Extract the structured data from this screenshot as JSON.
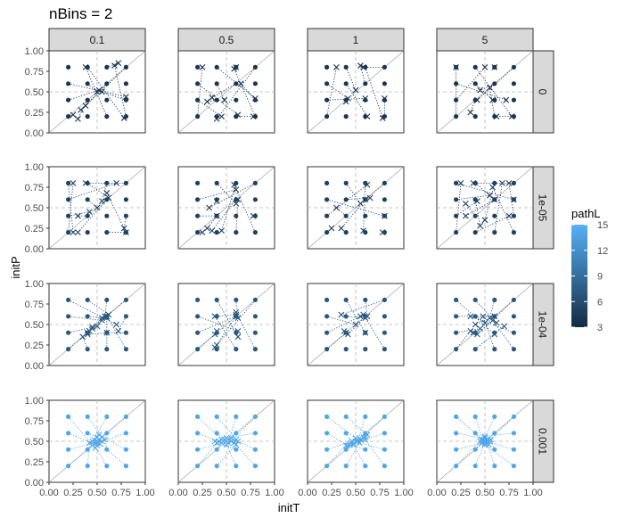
{
  "chart_data": {
    "type": "scatter",
    "title": "nBins =  2",
    "xlabel": "initT",
    "ylabel": "initP",
    "xlim": [
      0,
      1
    ],
    "ylim": [
      0,
      1
    ],
    "x_ticks": [
      "0.00",
      "0.25",
      "0.50",
      "0.75",
      "1.00"
    ],
    "y_ticks": [
      "0.00",
      "0.25",
      "0.50",
      "0.75",
      "1.00"
    ],
    "col_facets": [
      "0.1",
      "0.5",
      "1",
      "5"
    ],
    "row_facets": [
      "0",
      "1e-05",
      "1e-04",
      "0.001"
    ],
    "color_scale": {
      "title": "pathL",
      "range": [
        3,
        15
      ],
      "ticks": [
        "15",
        "12",
        "9",
        "6",
        "3"
      ],
      "low_color": "#132b43",
      "high_color": "#56b1f7"
    },
    "reference_lines": {
      "diagonal": true,
      "x": 0.5,
      "y": 0.5
    },
    "grid_initial_points": [
      0.2,
      0.4,
      0.6,
      0.8
    ],
    "row_pathL": [
      4,
      5,
      7,
      14
    ],
    "panels": [
      {
        "row": "0",
        "col": "0.1",
        "ends": [
          [
            0.25,
            0.22
          ],
          [
            0.3,
            0.17
          ],
          [
            0.33,
            0.28
          ],
          [
            0.38,
            0.33
          ],
          [
            0.52,
            0.52
          ],
          [
            0.5,
            0.5
          ],
          [
            0.72,
            0.85
          ],
          [
            0.68,
            0.82
          ],
          [
            0.8,
            0.44
          ],
          [
            0.78,
            0.18
          ],
          [
            0.38,
            0.8
          ],
          [
            0.55,
            0.5
          ]
        ]
      },
      {
        "row": "0",
        "col": "0.5",
        "ends": [
          [
            0.25,
            0.8
          ],
          [
            0.3,
            0.38
          ],
          [
            0.35,
            0.43
          ],
          [
            0.4,
            0.17
          ],
          [
            0.45,
            0.2
          ],
          [
            0.48,
            0.4
          ],
          [
            0.6,
            0.8
          ],
          [
            0.58,
            0.78
          ],
          [
            0.62,
            0.22
          ],
          [
            0.8,
            0.42
          ],
          [
            0.78,
            0.2
          ],
          [
            0.65,
            0.6
          ]
        ]
      },
      {
        "row": "0",
        "col": "1",
        "ends": [
          [
            0.3,
            0.8
          ],
          [
            0.4,
            0.38
          ],
          [
            0.55,
            0.82
          ],
          [
            0.58,
            0.8
          ],
          [
            0.6,
            0.42
          ],
          [
            0.62,
            0.2
          ],
          [
            0.78,
            0.18
          ],
          [
            0.8,
            0.42
          ],
          [
            0.42,
            0.42
          ],
          [
            0.5,
            0.52
          ]
        ]
      },
      {
        "row": "0",
        "col": "5",
        "ends": [
          [
            0.2,
            0.8
          ],
          [
            0.35,
            0.25
          ],
          [
            0.45,
            0.52
          ],
          [
            0.42,
            0.4
          ],
          [
            0.5,
            0.8
          ],
          [
            0.58,
            0.4
          ],
          [
            0.6,
            0.8
          ],
          [
            0.62,
            0.2
          ],
          [
            0.72,
            0.4
          ],
          [
            0.78,
            0.2
          ],
          [
            0.55,
            0.55
          ]
        ]
      },
      {
        "row": "1e-05",
        "col": "0.1",
        "ends": [
          [
            0.25,
            0.8
          ],
          [
            0.3,
            0.4
          ],
          [
            0.3,
            0.2
          ],
          [
            0.38,
            0.8
          ],
          [
            0.42,
            0.45
          ],
          [
            0.5,
            0.5
          ],
          [
            0.55,
            0.58
          ],
          [
            0.6,
            0.68
          ],
          [
            0.7,
            0.8
          ],
          [
            0.62,
            0.62
          ],
          [
            0.8,
            0.2
          ],
          [
            0.78,
            0.25
          ],
          [
            0.25,
            0.2
          ]
        ]
      },
      {
        "row": "1e-05",
        "col": "0.5",
        "ends": [
          [
            0.25,
            0.2
          ],
          [
            0.3,
            0.25
          ],
          [
            0.35,
            0.22
          ],
          [
            0.32,
            0.5
          ],
          [
            0.4,
            0.4
          ],
          [
            0.4,
            0.58
          ],
          [
            0.45,
            0.22
          ],
          [
            0.58,
            0.78
          ],
          [
            0.6,
            0.72
          ],
          [
            0.6,
            0.55
          ],
          [
            0.62,
            0.6
          ],
          [
            0.78,
            0.4
          ]
        ]
      },
      {
        "row": "1e-05",
        "col": "1",
        "ends": [
          [
            0.25,
            0.25
          ],
          [
            0.3,
            0.5
          ],
          [
            0.35,
            0.25
          ],
          [
            0.6,
            0.6
          ],
          [
            0.62,
            0.78
          ],
          [
            0.65,
            0.62
          ],
          [
            0.58,
            0.22
          ],
          [
            0.78,
            0.2
          ],
          [
            0.8,
            0.4
          ],
          [
            0.55,
            0.55
          ]
        ]
      },
      {
        "row": "1e-05",
        "col": "5",
        "ends": [
          [
            0.25,
            0.8
          ],
          [
            0.3,
            0.55
          ],
          [
            0.3,
            0.4
          ],
          [
            0.38,
            0.8
          ],
          [
            0.42,
            0.58
          ],
          [
            0.45,
            0.28
          ],
          [
            0.5,
            0.35
          ],
          [
            0.58,
            0.75
          ],
          [
            0.55,
            0.65
          ],
          [
            0.6,
            0.6
          ],
          [
            0.68,
            0.8
          ],
          [
            0.75,
            0.8
          ],
          [
            0.8,
            0.6
          ],
          [
            0.75,
            0.4
          ]
        ]
      },
      {
        "row": "1e-04",
        "col": "0.1",
        "ends": [
          [
            0.45,
            0.45
          ],
          [
            0.4,
            0.4
          ],
          [
            0.42,
            0.42
          ],
          [
            0.45,
            0.47
          ],
          [
            0.5,
            0.48
          ],
          [
            0.55,
            0.58
          ],
          [
            0.58,
            0.6
          ],
          [
            0.6,
            0.6
          ],
          [
            0.55,
            0.55
          ],
          [
            0.62,
            0.62
          ],
          [
            0.6,
            0.58
          ],
          [
            0.6,
            0.4
          ],
          [
            0.7,
            0.5
          ],
          [
            0.35,
            0.35
          ],
          [
            0.4,
            0.38
          ],
          [
            0.72,
            0.42
          ]
        ]
      },
      {
        "row": "1e-04",
        "col": "0.5",
        "ends": [
          [
            0.38,
            0.38
          ],
          [
            0.4,
            0.42
          ],
          [
            0.38,
            0.22
          ],
          [
            0.4,
            0.25
          ],
          [
            0.6,
            0.6
          ],
          [
            0.6,
            0.62
          ],
          [
            0.62,
            0.58
          ],
          [
            0.6,
            0.65
          ],
          [
            0.62,
            0.42
          ],
          [
            0.62,
            0.35
          ],
          [
            0.38,
            0.6
          ]
        ]
      },
      {
        "row": "1e-04",
        "col": "1",
        "ends": [
          [
            0.4,
            0.4
          ],
          [
            0.38,
            0.42
          ],
          [
            0.42,
            0.38
          ],
          [
            0.35,
            0.62
          ],
          [
            0.55,
            0.6
          ],
          [
            0.6,
            0.58
          ],
          [
            0.62,
            0.6
          ],
          [
            0.58,
            0.62
          ],
          [
            0.5,
            0.5
          ],
          [
            0.6,
            0.4
          ]
        ]
      },
      {
        "row": "1e-04",
        "col": "5",
        "ends": [
          [
            0.35,
            0.42
          ],
          [
            0.38,
            0.4
          ],
          [
            0.4,
            0.5
          ],
          [
            0.42,
            0.38
          ],
          [
            0.45,
            0.45
          ],
          [
            0.5,
            0.52
          ],
          [
            0.55,
            0.58
          ],
          [
            0.58,
            0.55
          ],
          [
            0.6,
            0.6
          ],
          [
            0.62,
            0.52
          ],
          [
            0.48,
            0.6
          ],
          [
            0.35,
            0.6
          ],
          [
            0.6,
            0.38
          ],
          [
            0.7,
            0.48
          ]
        ]
      },
      {
        "row": "0.001",
        "col": "0.1",
        "ends": [
          [
            0.45,
            0.45
          ],
          [
            0.48,
            0.48
          ],
          [
            0.5,
            0.5
          ],
          [
            0.52,
            0.52
          ],
          [
            0.55,
            0.5
          ],
          [
            0.5,
            0.55
          ],
          [
            0.47,
            0.52
          ],
          [
            0.53,
            0.47
          ],
          [
            0.5,
            0.45
          ],
          [
            0.55,
            0.55
          ],
          [
            0.45,
            0.5
          ],
          [
            0.52,
            0.58
          ],
          [
            0.48,
            0.42
          ],
          [
            0.42,
            0.48
          ],
          [
            0.58,
            0.52
          ],
          [
            0.5,
            0.48
          ]
        ]
      },
      {
        "row": "0.001",
        "col": "0.5",
        "ends": [
          [
            0.4,
            0.48
          ],
          [
            0.45,
            0.48
          ],
          [
            0.5,
            0.5
          ],
          [
            0.55,
            0.5
          ],
          [
            0.6,
            0.52
          ],
          [
            0.48,
            0.52
          ],
          [
            0.52,
            0.48
          ],
          [
            0.58,
            0.48
          ],
          [
            0.42,
            0.5
          ],
          [
            0.62,
            0.5
          ],
          [
            0.5,
            0.46
          ],
          [
            0.55,
            0.54
          ],
          [
            0.45,
            0.52
          ],
          [
            0.6,
            0.46
          ],
          [
            0.38,
            0.5
          ],
          [
            0.5,
            0.54
          ]
        ]
      },
      {
        "row": "0.001",
        "col": "1",
        "ends": [
          [
            0.4,
            0.45
          ],
          [
            0.45,
            0.48
          ],
          [
            0.5,
            0.5
          ],
          [
            0.55,
            0.52
          ],
          [
            0.6,
            0.55
          ],
          [
            0.48,
            0.46
          ],
          [
            0.52,
            0.5
          ],
          [
            0.58,
            0.55
          ],
          [
            0.42,
            0.45
          ],
          [
            0.62,
            0.58
          ],
          [
            0.46,
            0.5
          ],
          [
            0.54,
            0.48
          ],
          [
            0.5,
            0.54
          ],
          [
            0.56,
            0.52
          ],
          [
            0.44,
            0.46
          ],
          [
            0.6,
            0.52
          ]
        ]
      },
      {
        "row": "0.001",
        "col": "5",
        "ends": [
          [
            0.45,
            0.5
          ],
          [
            0.48,
            0.52
          ],
          [
            0.5,
            0.5
          ],
          [
            0.52,
            0.48
          ],
          [
            0.55,
            0.5
          ],
          [
            0.5,
            0.46
          ],
          [
            0.5,
            0.54
          ],
          [
            0.47,
            0.48
          ],
          [
            0.53,
            0.52
          ],
          [
            0.48,
            0.5
          ],
          [
            0.52,
            0.5
          ],
          [
            0.46,
            0.52
          ],
          [
            0.54,
            0.46
          ],
          [
            0.5,
            0.48
          ],
          [
            0.56,
            0.52
          ],
          [
            0.5,
            0.56
          ]
        ]
      }
    ]
  }
}
